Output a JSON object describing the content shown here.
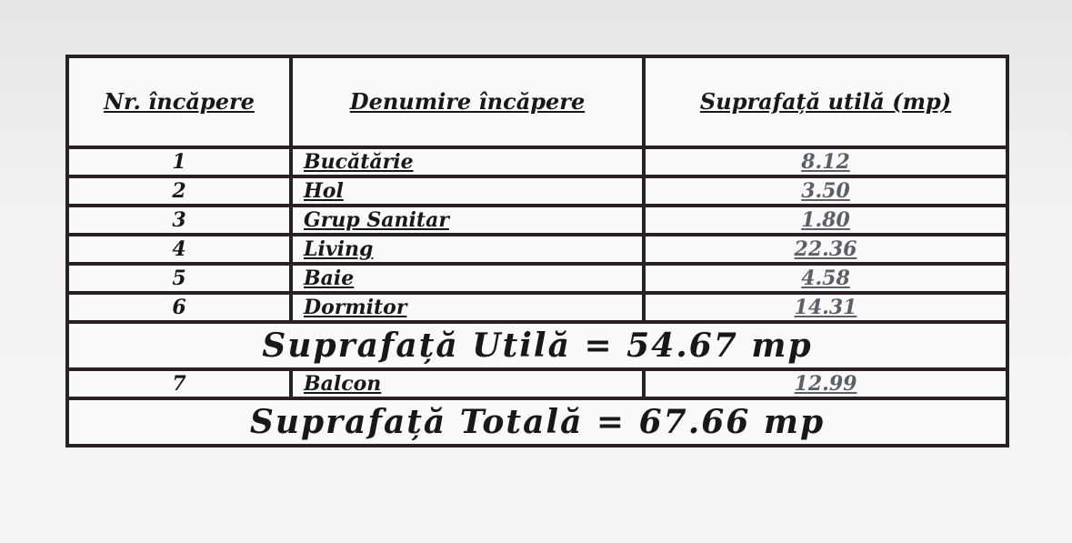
{
  "table": {
    "headers": {
      "nr": "Nr. încăpere",
      "name": "Denumire încăpere",
      "area": "Suprafață utilă (mp)"
    },
    "rows": [
      {
        "nr": "1",
        "name": "Bucătărie",
        "area": "8.12"
      },
      {
        "nr": "2",
        "name": "Hol",
        "area": "3.50"
      },
      {
        "nr": "3",
        "name": "Grup Sanitar",
        "area": "1.80"
      },
      {
        "nr": "4",
        "name": "Living",
        "area": "22.36"
      },
      {
        "nr": "5",
        "name": "Baie",
        "area": "4.58"
      },
      {
        "nr": "6",
        "name": "Dormitor",
        "area": "14.31"
      }
    ],
    "useful_total": "Suprafață Utilă = 54.67 mp",
    "balcony": {
      "nr": "7",
      "name": "Balcon",
      "area": "12.99"
    },
    "grand_total": "Suprafață Totală = 67.66 mp"
  }
}
